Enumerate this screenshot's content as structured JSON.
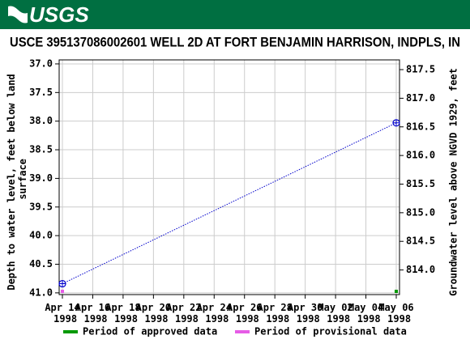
{
  "header": {
    "logo": "USGS"
  },
  "chart_data": {
    "type": "line",
    "title": "USCE 395137086002601 WELL 2D AT FORT BENJAMIN HARRISON, INDPLS, IN",
    "y_label": "Depth to water level, feet below land surface",
    "y2_label": "Groundwater level above NGVD 1929, feet",
    "x": [
      "1998-04-14",
      "1998-05-06"
    ],
    "series": [
      {
        "color": "#0000cc",
        "values": [
          40.84,
          38.03
        ],
        "marker_colors": [
          "#e65ce6",
          "#009900"
        ]
      }
    ],
    "xlim": [
      "1998-04-14",
      "1998-05-06"
    ],
    "xticks": [
      {
        "value": "1998-04-14",
        "label": "Apr 14 1998"
      },
      {
        "value": "1998-04-16",
        "label": "Apr 16 1998"
      },
      {
        "value": "1998-04-18",
        "label": "Apr 18 1998"
      },
      {
        "value": "1998-04-20",
        "label": "Apr 20 1998"
      },
      {
        "value": "1998-04-22",
        "label": "Apr 22 1998"
      },
      {
        "value": "1998-04-24",
        "label": "Apr 24 1998"
      },
      {
        "value": "1998-04-26",
        "label": "Apr 26 1998"
      },
      {
        "value": "1998-04-28",
        "label": "Apr 28 1998"
      },
      {
        "value": "1998-04-30",
        "label": "Apr 30 1998"
      },
      {
        "value": "1998-05-02",
        "label": "May 02 1998"
      },
      {
        "value": "1998-05-04",
        "label": "May 04 1998"
      },
      {
        "value": "1998-05-06",
        "label": "May 06 1998"
      }
    ],
    "ylim": [
      36.93,
      41.03
    ],
    "yticks": [
      {
        "value": 37,
        "label": "37.0"
      },
      {
        "value": 37.5,
        "label": "37.5"
      },
      {
        "value": 38,
        "label": "38.0"
      },
      {
        "value": 38.5,
        "label": "38.5"
      },
      {
        "value": 39,
        "label": "39.0"
      },
      {
        "value": 39.5,
        "label": "39.5"
      },
      {
        "value": 40,
        "label": "40.0"
      },
      {
        "value": 40.5,
        "label": "40.5"
      },
      {
        "value": 41,
        "label": "41.0"
      }
    ],
    "y2lim": [
      817.67,
      813.57
    ],
    "y2ticks": [
      {
        "value": 817.5,
        "label": "817.5"
      },
      {
        "value": 817,
        "label": "817.0"
      },
      {
        "value": 816.5,
        "label": "816.5"
      },
      {
        "value": 816,
        "label": "816.0"
      },
      {
        "value": 815.5,
        "label": "815.5"
      },
      {
        "value": 815,
        "label": "815.0"
      },
      {
        "value": 814.5,
        "label": "814.5"
      },
      {
        "value": 814,
        "label": "814.0"
      }
    ],
    "grid": true,
    "legend": [
      {
        "name": "Period of approved data",
        "color": "#009900"
      },
      {
        "name": "Period of provisional data",
        "color": "#e65ce6"
      }
    ]
  }
}
